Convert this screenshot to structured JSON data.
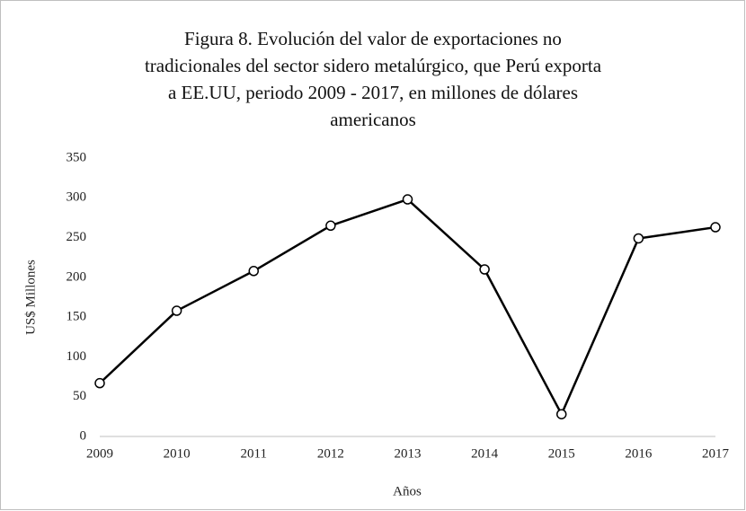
{
  "chart_data": {
    "type": "line",
    "title": [
      "Figura 8. Evolución del valor de exportaciones no",
      "tradicionales del  sector sidero metalúrgico, que Perú exporta",
      "a EE.UU, periodo 2009 - 2017, en millones de dólares",
      "americanos"
    ],
    "x_label": "Años",
    "y_label": "US$ Millones",
    "categories": [
      "2009",
      "2010",
      "2011",
      "2012",
      "2013",
      "2014",
      "2015",
      "2016",
      "2017"
    ],
    "values": [
      67,
      158,
      208,
      265,
      298,
      210,
      28,
      249,
      263
    ],
    "color": "#000000",
    "ylim": [
      0,
      350
    ],
    "yticks": [
      0,
      50,
      100,
      150,
      200,
      250,
      300,
      350
    ],
    "grid": false
  }
}
